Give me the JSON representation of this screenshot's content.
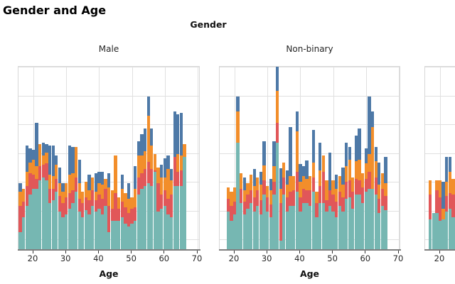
{
  "title": "Gender and Age",
  "strip_title": "Gender",
  "axis": {
    "xlabel": "Age",
    "x_ticks": [
      "20",
      "30",
      "40",
      "50",
      "60",
      "70"
    ]
  },
  "palette": {
    "teal": "#76b7b2",
    "red": "#e15759",
    "orange": "#f28e2b",
    "blue": "#4e79a7",
    "gridline": "#e0e0e0",
    "panel_border": "#d8d8d8",
    "axis_line": "#7f7f7f",
    "text": "#262626"
  },
  "chart_data": {
    "type": "bar",
    "subtype": "stacked-histogram",
    "title": "Gender and Age",
    "facet_row_title": "Gender",
    "xlabel": "Age",
    "x_tick_values": [
      20,
      30,
      40,
      50,
      60,
      70
    ],
    "bin_width_years": 1,
    "stack_order_bottom_to_top": [
      "teal",
      "red",
      "orange",
      "blue"
    ],
    "y_units": "counts; y-axis labels cropped out of view, values given in gridline intervals (1 unit = 1 horizontal gridline spacing)",
    "ylim": [
      0,
      6.4
    ],
    "grid": "on",
    "legend": "not visible (cropped)",
    "facets": [
      {
        "label": "Male",
        "bars": [
          [
            16,
            0.6,
            0.9,
            0.5,
            0.3
          ],
          [
            17,
            1.1,
            0.55,
            0.45,
            0
          ],
          [
            18,
            1.5,
            0.7,
            0.5,
            0.9
          ],
          [
            19,
            1.9,
            0.75,
            0.35,
            0.5
          ],
          [
            20,
            2.1,
            0.5,
            0.5,
            0.35
          ],
          [
            21,
            2.1,
            0.35,
            0.45,
            1.5
          ],
          [
            22,
            2.4,
            0.5,
            0.75,
            0
          ],
          [
            23,
            2.5,
            0.45,
            0.3,
            0.45
          ],
          [
            24,
            2.4,
            0.6,
            0.35,
            0.3
          ],
          [
            25,
            1.6,
            0.5,
            0.5,
            1.0
          ],
          [
            26,
            1.7,
            0.4,
            0.45,
            1.05
          ],
          [
            27,
            2.0,
            0.45,
            0.5,
            0.3
          ],
          [
            28,
            1.3,
            0.55,
            0.45,
            0.55
          ],
          [
            29,
            1.1,
            0.5,
            0.4,
            0.3
          ],
          [
            30,
            1.2,
            0.6,
            0.5,
            0
          ],
          [
            31,
            1.4,
            0.55,
            0.65,
            1.0
          ],
          [
            32,
            1.6,
            0.45,
            0.6,
            0.9
          ],
          [
            33,
            2.0,
            0.5,
            1.05,
            0
          ],
          [
            34,
            1.3,
            0.45,
            0.55,
            0.8
          ],
          [
            35,
            1.1,
            0.5,
            0.4,
            0
          ],
          [
            36,
            1.35,
            0.45,
            0.55,
            0
          ],
          [
            37,
            1.2,
            0.5,
            0.35,
            0.55
          ],
          [
            38,
            1.5,
            0.55,
            0.45,
            0
          ],
          [
            39,
            1.3,
            0.4,
            0.3,
            0.65
          ],
          [
            40,
            1.4,
            0.5,
            0.4,
            0.4
          ],
          [
            41,
            1.2,
            0.55,
            0.5,
            0.45
          ],
          [
            42,
            1.5,
            0.6,
            0.35,
            0
          ],
          [
            43,
            0.6,
            0.9,
            0.65,
            0.5
          ],
          [
            44,
            1.0,
            0.4,
            0.65,
            0
          ],
          [
            45,
            1.0,
            0.95,
            1.3,
            0
          ],
          [
            46,
            1.0,
            0.4,
            0.4,
            0
          ],
          [
            47,
            1.1,
            0.55,
            0.45,
            0.5
          ],
          [
            48,
            0.9,
            0.55,
            0.5,
            0
          ],
          [
            49,
            0.8,
            0.45,
            0.5,
            0.55
          ],
          [
            50,
            0.9,
            0.5,
            0.4,
            0
          ],
          [
            51,
            1.0,
            0.45,
            0.65,
            0.8
          ],
          [
            52,
            1.9,
            0.6,
            0.75,
            0.5
          ],
          [
            53,
            2.1,
            0.55,
            0.6,
            0.75
          ],
          [
            54,
            2.2,
            0.6,
            0.6,
            0.8
          ],
          [
            55,
            2.3,
            0.75,
            1.6,
            0.65
          ],
          [
            56,
            2.2,
            0.6,
            0.8,
            0.6
          ],
          [
            57,
            2.7,
            0.05,
            0.55,
            0
          ],
          [
            58,
            1.3,
            1.0,
            0.55,
            0
          ],
          [
            59,
            1.4,
            0.5,
            0.6,
            0.45
          ],
          [
            60,
            1.5,
            0.55,
            0.45,
            0.65
          ],
          [
            61,
            1.2,
            0.55,
            1.05,
            0.45
          ],
          [
            62,
            1.1,
            0.8,
            0.5,
            0.4
          ],
          [
            63,
            2.2,
            1.0,
            0,
            1.6
          ],
          [
            64,
            2.2,
            0.5,
            0.6,
            1.4
          ],
          [
            65,
            2.2,
            0.55,
            0.5,
            1.5
          ],
          [
            66,
            3.2,
            0,
            0.45,
            0
          ]
        ]
      },
      {
        "label": "Non-binary",
        "bars": [
          [
            18,
            1.3,
            0.45,
            0.4,
            0
          ],
          [
            19,
            1.0,
            0.5,
            0.5,
            0
          ],
          [
            20,
            1.2,
            0.45,
            0.5,
            0
          ],
          [
            21,
            3.7,
            0,
            1.1,
            0.5
          ],
          [
            22,
            1.6,
            0.5,
            0.55,
            0
          ],
          [
            23,
            1.2,
            0.45,
            0.4,
            0.45
          ],
          [
            24,
            1.4,
            0.5,
            0.4,
            0
          ],
          [
            25,
            1.6,
            0.45,
            0.55,
            0
          ],
          [
            26,
            1.3,
            0.5,
            0.4,
            0.6
          ],
          [
            27,
            1.5,
            0.55,
            0.45,
            0
          ],
          [
            28,
            1.2,
            0.5,
            0.55,
            0.45
          ],
          [
            29,
            1.9,
            0.5,
            0.5,
            0.85
          ],
          [
            30,
            1.3,
            0.5,
            0.4,
            0
          ],
          [
            31,
            1.1,
            0.45,
            0.5,
            0.4
          ],
          [
            32,
            1.9,
            0.45,
            0.55,
            0.85
          ],
          [
            33,
            3.7,
            0.7,
            1.1,
            0.85
          ],
          [
            34,
            0.3,
            1.3,
            0.5,
            0.7
          ],
          [
            35,
            1.9,
            0.6,
            0.5,
            0
          ],
          [
            36,
            1.3,
            0.5,
            0.45,
            0.5
          ],
          [
            37,
            1.5,
            0.5,
            0.55,
            1.7
          ],
          [
            38,
            1.5,
            0.55,
            0.5,
            0
          ],
          [
            39,
            2.0,
            0.7,
            1.4,
            0.7
          ],
          [
            40,
            1.3,
            0.5,
            0.55,
            0.6
          ],
          [
            41,
            1.6,
            0.5,
            0.45,
            0.35
          ],
          [
            42,
            1.6,
            0.45,
            0.4,
            0.65
          ],
          [
            43,
            1.5,
            0.55,
            0.5,
            0
          ],
          [
            44,
            2.0,
            0.5,
            0.5,
            1.15
          ],
          [
            45,
            1.1,
            0.5,
            0.4,
            0
          ],
          [
            46,
            1.6,
            0.6,
            0.55,
            0.95
          ],
          [
            47,
            1.6,
            1.1,
            0.55,
            0
          ],
          [
            48,
            1.3,
            0.4,
            0.7,
            0
          ],
          [
            49,
            1.5,
            0.55,
            0,
            1.3
          ],
          [
            50,
            1.3,
            0.6,
            0.5,
            0
          ],
          [
            51,
            1.1,
            0.55,
            0.45,
            0.5
          ],
          [
            52,
            1.5,
            0.5,
            0.55,
            0
          ],
          [
            53,
            1.3,
            0.5,
            0.45,
            0.6
          ],
          [
            54,
            1.75,
            0.6,
            0.55,
            0.8
          ],
          [
            55,
            1.8,
            0.6,
            0.7,
            0.45
          ],
          [
            56,
            1.4,
            0.6,
            0.5,
            0
          ],
          [
            57,
            1.9,
            0.55,
            0.6,
            0.9
          ],
          [
            58,
            1.9,
            0.5,
            0.7,
            1.1
          ],
          [
            59,
            1.6,
            0.55,
            0.5,
            0
          ],
          [
            60,
            2.0,
            0.45,
            0.55,
            0.5
          ],
          [
            61,
            2.1,
            0.6,
            0.6,
            2.0
          ],
          [
            62,
            2.1,
            0,
            2.15,
            0.55
          ],
          [
            63,
            1.9,
            0.6,
            0.55,
            0.5
          ],
          [
            64,
            1.25,
            0.5,
            0.5,
            0.75
          ],
          [
            65,
            1.5,
            0.6,
            0.55,
            0
          ],
          [
            66,
            1.35,
            0.5,
            0.45,
            0.9
          ]
        ]
      },
      {
        "label": "",
        "bars": [
          [
            17,
            1.05,
            0.85,
            0.5,
            0
          ],
          [
            18,
            1.25,
            0,
            0,
            0
          ],
          [
            19,
            1.25,
            0.8,
            0.35,
            0
          ],
          [
            20,
            1.0,
            0.8,
            0.6,
            0
          ],
          [
            21,
            1.05,
            0,
            0.35,
            0.95
          ],
          [
            22,
            1.3,
            0.55,
            0.5,
            0.85
          ],
          [
            23,
            1.4,
            0.55,
            0.75,
            0.5
          ],
          [
            24,
            1.1,
            0.8,
            0.55,
            0
          ],
          [
            25,
            1.2,
            0.5,
            0.6,
            0
          ]
        ]
      }
    ]
  }
}
